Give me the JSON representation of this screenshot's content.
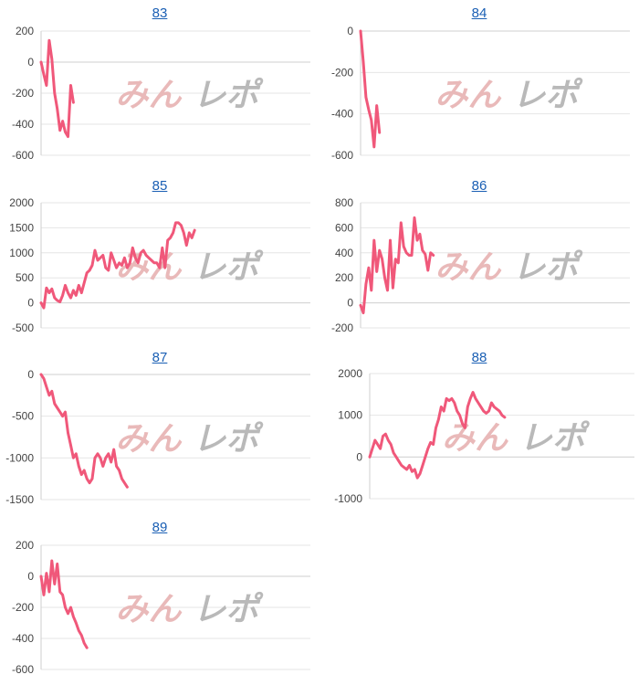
{
  "colors": {
    "series": "#f0587a",
    "link": "#1a5fb4",
    "watermark_pink": "#e9b9b9",
    "watermark_gray": "#b9b9b9"
  },
  "watermark": {
    "part1": "みん",
    "part2": "レポ"
  },
  "chart_data": [
    {
      "type": "line",
      "title": "83",
      "ylim": [
        -600,
        200
      ],
      "yticks": [
        200,
        0,
        -200,
        -400,
        -600
      ],
      "xcount": 100,
      "series": [
        {
          "values": [
            0,
            -80,
            -150,
            140,
            20,
            -200,
            -300,
            -440,
            -380,
            -450,
            -480,
            -150,
            -260
          ]
        }
      ]
    },
    {
      "type": "line",
      "title": "84",
      "ylim": [
        -600,
        0
      ],
      "yticks": [
        0,
        -200,
        -400,
        -600
      ],
      "xcount": 100,
      "series": [
        {
          "values": [
            0,
            -150,
            -320,
            -380,
            -430,
            -560,
            -360,
            -490
          ]
        }
      ]
    },
    {
      "type": "line",
      "title": "85",
      "ylim": [
        -500,
        2000
      ],
      "yticks": [
        2000,
        1500,
        1000,
        500,
        0,
        -500
      ],
      "xcount": 100,
      "series": [
        {
          "values": [
            0,
            -100,
            300,
            200,
            280,
            100,
            50,
            20,
            150,
            350,
            200,
            100,
            250,
            150,
            350,
            200,
            400,
            600,
            650,
            750,
            1050,
            850,
            900,
            950,
            700,
            650,
            1000,
            850,
            700,
            800,
            750,
            900,
            700,
            800,
            1100,
            900,
            800,
            1000,
            1050,
            950,
            900,
            850,
            800,
            800,
            700,
            1100,
            700,
            1250,
            1300,
            1400,
            1600,
            1600,
            1550,
            1400,
            1150,
            1400,
            1300,
            1450
          ]
        }
      ]
    },
    {
      "type": "line",
      "title": "86",
      "ylim": [
        -200,
        800
      ],
      "yticks": [
        800,
        600,
        400,
        200,
        0,
        -200
      ],
      "xcount": 100,
      "series": [
        {
          "values": [
            -20,
            -80,
            150,
            280,
            100,
            500,
            250,
            420,
            350,
            200,
            100,
            500,
            120,
            350,
            320,
            640,
            450,
            400,
            380,
            380,
            680,
            500,
            550,
            420,
            390,
            260,
            400,
            380
          ]
        }
      ]
    },
    {
      "type": "line",
      "title": "87",
      "ylim": [
        -1500,
        0
      ],
      "yticks": [
        0,
        -500,
        -1000,
        -1500
      ],
      "xcount": 100,
      "series": [
        {
          "values": [
            0,
            -50,
            -150,
            -250,
            -200,
            -350,
            -400,
            -450,
            -500,
            -450,
            -700,
            -850,
            -1000,
            -950,
            -1100,
            -1200,
            -1150,
            -1250,
            -1300,
            -1250,
            -1000,
            -950,
            -1000,
            -1100,
            -1000,
            -950,
            -1050,
            -900,
            -1100,
            -1150,
            -1250,
            -1300,
            -1350
          ]
        }
      ]
    },
    {
      "type": "line",
      "title": "88",
      "ylim": [
        -1000,
        2000
      ],
      "yticks": [
        2000,
        1000,
        0,
        -1000
      ],
      "xcount": 100,
      "series": [
        {
          "values": [
            0,
            200,
            400,
            300,
            200,
            500,
            550,
            400,
            300,
            100,
            0,
            -100,
            -200,
            -250,
            -300,
            -200,
            -350,
            -300,
            -500,
            -400,
            -200,
            0,
            200,
            350,
            300,
            700,
            900,
            1200,
            1100,
            1400,
            1350,
            1400,
            1300,
            1100,
            1000,
            800,
            700,
            1200,
            1400,
            1550,
            1400,
            1300,
            1200,
            1100,
            1050,
            1100,
            1300,
            1200,
            1150,
            1100,
            1000,
            950
          ]
        }
      ]
    },
    {
      "type": "line",
      "title": "89",
      "ylim": [
        -600,
        200
      ],
      "yticks": [
        200,
        0,
        -200,
        -400,
        -600
      ],
      "xcount": 100,
      "series": [
        {
          "values": [
            0,
            -120,
            20,
            -100,
            100,
            -50,
            80,
            -100,
            -120,
            -200,
            -240,
            -200,
            -260,
            -300,
            -350,
            -380,
            -430,
            -460
          ]
        }
      ]
    }
  ]
}
